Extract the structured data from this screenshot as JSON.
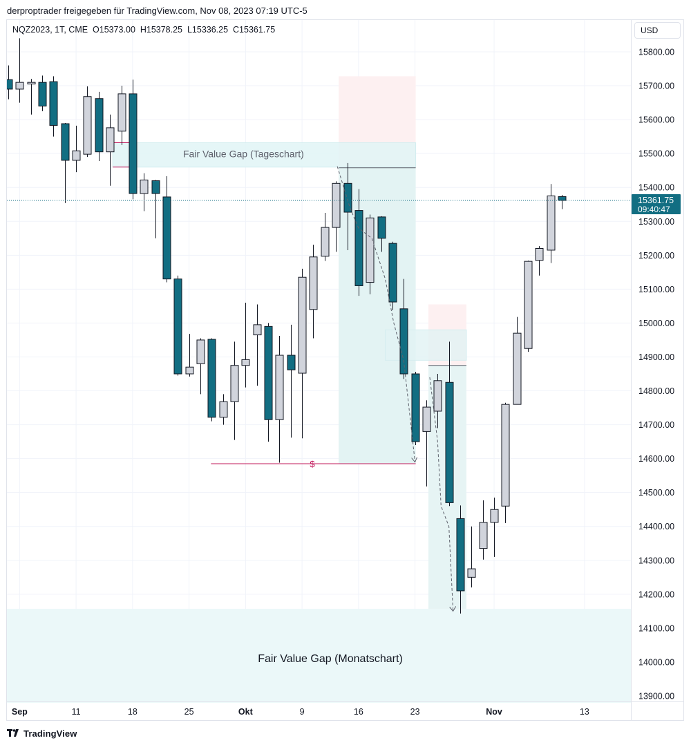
{
  "header": {
    "credit": "derproptrader freigegeben für TradingView.com, Nov 08, 2023 07:19 UTC-5"
  },
  "legend": {
    "symbol": "NQZ2023, 1T, CME",
    "open": "O15373.00",
    "high": "H15378.25",
    "low": "L15336.25",
    "close": "C15361.75"
  },
  "currency_button": "USD",
  "footer": {
    "brand": "TradingView",
    "logo_icon": "tradingview-logo-icon"
  },
  "colors": {
    "bear": "#126e82",
    "bull": "#d1d4dc",
    "border": "#131722",
    "grid": "#f0f3fa",
    "fvg_fill": "#e0f5f7",
    "dashed_arrow": "#5d606b",
    "liquidity_line": "#c2185b",
    "stop_zone": "#fdecec",
    "price_label_bg": "#126e82"
  },
  "chart_data": {
    "type": "candlestick",
    "y_ticks": [
      "15800.00",
      "15700.00",
      "15600.00",
      "15500.00",
      "15400.00",
      "15300.00",
      "15200.00",
      "15100.00",
      "15000.00",
      "14900.00",
      "14800.00",
      "14700.00",
      "14600.00",
      "14500.00",
      "14400.00",
      "14300.00",
      "14200.00",
      "14100.00",
      "14000.00",
      "13900.00"
    ],
    "y_tick_values": [
      15800,
      15700,
      15600,
      15500,
      15400,
      15300,
      15200,
      15100,
      15000,
      14900,
      14800,
      14700,
      14600,
      14500,
      14400,
      14300,
      14200,
      14100,
      14000,
      13900
    ],
    "x_ticks": [
      {
        "label": "Sep",
        "index": 1,
        "bold": true
      },
      {
        "label": "11",
        "index": 6,
        "bold": false
      },
      {
        "label": "18",
        "index": 11,
        "bold": false
      },
      {
        "label": "25",
        "index": 16,
        "bold": false
      },
      {
        "label": "Okt",
        "index": 21,
        "bold": true
      },
      {
        "label": "9",
        "index": 26,
        "bold": false
      },
      {
        "label": "16",
        "index": 31,
        "bold": false
      },
      {
        "label": "23",
        "index": 36,
        "bold": false
      },
      {
        "label": "Nov",
        "index": 43,
        "bold": true
      },
      {
        "label": "13",
        "index": 51,
        "bold": false
      }
    ],
    "candles": [
      {
        "o": 15718,
        "h": 15760,
        "l": 15660,
        "c": 15690
      },
      {
        "o": 15690,
        "h": 15840,
        "l": 15650,
        "c": 15710
      },
      {
        "o": 15705,
        "h": 15720,
        "l": 15615,
        "c": 15710
      },
      {
        "o": 15710,
        "h": 15730,
        "l": 15625,
        "c": 15640
      },
      {
        "o": 15712,
        "h": 15728,
        "l": 15550,
        "c": 15583
      },
      {
        "o": 15588,
        "h": 15590,
        "l": 15354,
        "c": 15480
      },
      {
        "o": 15480,
        "h": 15582,
        "l": 15445,
        "c": 15508
      },
      {
        "o": 15498,
        "h": 15698,
        "l": 15490,
        "c": 15668
      },
      {
        "o": 15662,
        "h": 15682,
        "l": 15478,
        "c": 15505
      },
      {
        "o": 15505,
        "h": 15615,
        "l": 15405,
        "c": 15576
      },
      {
        "o": 15566,
        "h": 15700,
        "l": 15525,
        "c": 15676
      },
      {
        "o": 15676,
        "h": 15718,
        "l": 15365,
        "c": 15382
      },
      {
        "o": 15382,
        "h": 15442,
        "l": 15330,
        "c": 15422
      },
      {
        "o": 15420,
        "h": 15422,
        "l": 15250,
        "c": 15382
      },
      {
        "o": 15372,
        "h": 15433,
        "l": 15120,
        "c": 15130
      },
      {
        "o": 15130,
        "h": 15140,
        "l": 14845,
        "c": 14850
      },
      {
        "o": 14850,
        "h": 14968,
        "l": 14842,
        "c": 14870
      },
      {
        "o": 14880,
        "h": 14955,
        "l": 14790,
        "c": 14950
      },
      {
        "o": 14952,
        "h": 14955,
        "l": 14710,
        "c": 14722
      },
      {
        "o": 14722,
        "h": 14790,
        "l": 14700,
        "c": 14768
      },
      {
        "o": 14768,
        "h": 14945,
        "l": 14655,
        "c": 14875
      },
      {
        "o": 14875,
        "h": 15060,
        "l": 14810,
        "c": 14892
      },
      {
        "o": 14965,
        "h": 15055,
        "l": 14815,
        "c": 14995
      },
      {
        "o": 14990,
        "h": 15000,
        "l": 14650,
        "c": 14715
      },
      {
        "o": 14715,
        "h": 14962,
        "l": 14588,
        "c": 14905
      },
      {
        "o": 14905,
        "h": 14995,
        "l": 14662,
        "c": 14862
      },
      {
        "o": 14852,
        "h": 15160,
        "l": 14660,
        "c": 15135
      },
      {
        "o": 15040,
        "h": 15231,
        "l": 14955,
        "c": 15195
      },
      {
        "o": 15197,
        "h": 15325,
        "l": 15183,
        "c": 15282
      },
      {
        "o": 15282,
        "h": 15418,
        "l": 15210,
        "c": 15412
      },
      {
        "o": 15412,
        "h": 15472,
        "l": 15215,
        "c": 15327
      },
      {
        "o": 15332,
        "h": 15395,
        "l": 15080,
        "c": 15110
      },
      {
        "o": 15120,
        "h": 15320,
        "l": 15085,
        "c": 15310
      },
      {
        "o": 15313,
        "h": 15315,
        "l": 15210,
        "c": 15250
      },
      {
        "o": 15235,
        "h": 15240,
        "l": 15038,
        "c": 15062
      },
      {
        "o": 15042,
        "h": 15130,
        "l": 14835,
        "c": 14850
      },
      {
        "o": 14850,
        "h": 14856,
        "l": 14640,
        "c": 14650
      },
      {
        "o": 14680,
        "h": 14772,
        "l": 14518,
        "c": 14752
      },
      {
        "o": 14740,
        "h": 14850,
        "l": 14690,
        "c": 14830
      },
      {
        "o": 14825,
        "h": 14945,
        "l": 14460,
        "c": 14470
      },
      {
        "o": 14423,
        "h": 14462,
        "l": 14143,
        "c": 14210
      },
      {
        "o": 14250,
        "h": 14400,
        "l": 14220,
        "c": 14275
      },
      {
        "o": 14335,
        "h": 14477,
        "l": 14302,
        "c": 14412
      },
      {
        "o": 14412,
        "h": 14485,
        "l": 14310,
        "c": 14450
      },
      {
        "o": 14460,
        "h": 14765,
        "l": 14410,
        "c": 14760
      },
      {
        "o": 14760,
        "h": 15018,
        "l": 14760,
        "c": 14970
      },
      {
        "o": 14925,
        "h": 15184,
        "l": 14915,
        "c": 15182
      },
      {
        "o": 15185,
        "h": 15227,
        "l": 15140,
        "c": 15220
      },
      {
        "o": 15215,
        "h": 15410,
        "l": 15177,
        "c": 15375
      },
      {
        "o": 15373,
        "h": 15378,
        "l": 15336,
        "c": 15361.75
      }
    ],
    "last_price": "15361.75",
    "last_price_value": 15361.75,
    "countdown": "09:40:47",
    "annotations": {
      "fvg_daily": {
        "label": "Fair Value Gap (Tageschart)",
        "from_index": 9,
        "to_index": 36,
        "top": 15532,
        "bottom": 15460
      },
      "fvg_monthly": {
        "label": "Fair Value Gap (Monatschart)",
        "from_index": -1,
        "to_index": 55,
        "top": 14157,
        "bottom": 13880
      },
      "liquidity": {
        "label": "$",
        "from_index": 18,
        "to_index": 36,
        "price": 14585
      },
      "trade1": {
        "from_index": 29,
        "to_index": 36,
        "entry": 15458,
        "stop_top": 15728,
        "target": 14585
      },
      "trade2": {
        "from_index": 37,
        "to_index": 40,
        "entry": 14875,
        "stop_top": 15055,
        "target": 14157
      },
      "fvg_small": {
        "from_index": 33,
        "to_index": 40,
        "top": 14980,
        "bottom": 14890
      }
    }
  }
}
